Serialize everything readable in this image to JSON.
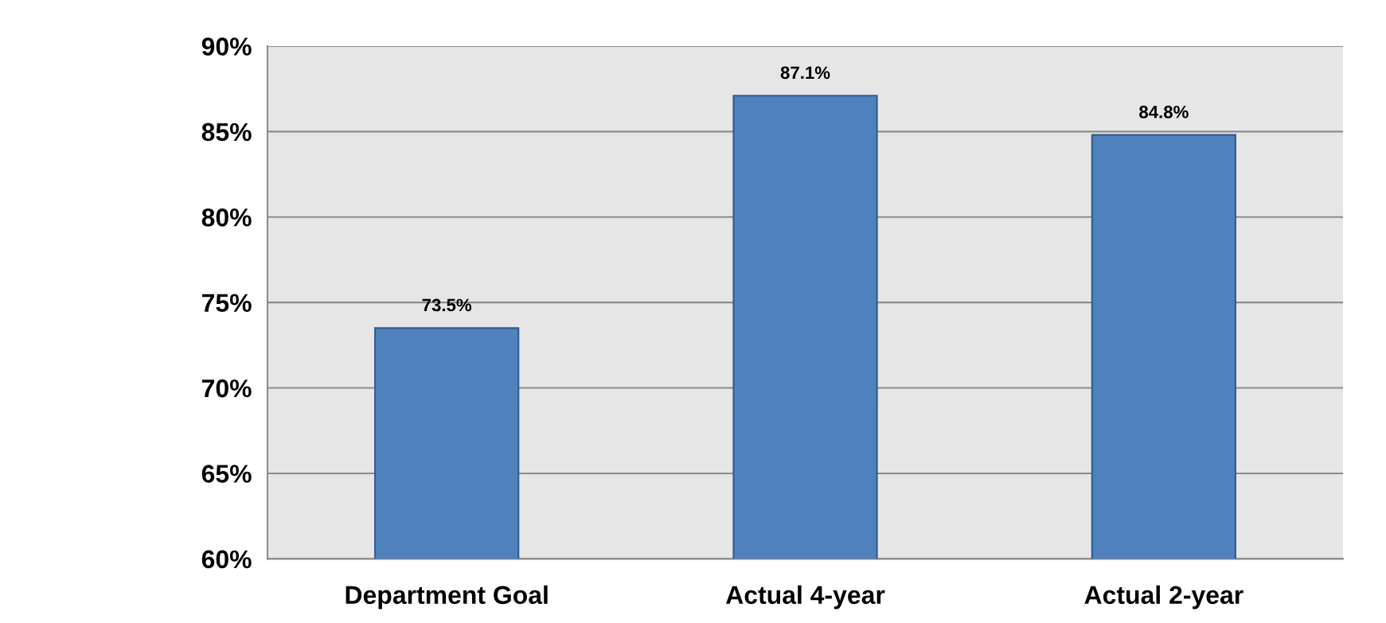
{
  "chart_data": {
    "type": "bar",
    "categories": [
      "Department Goal",
      "Actual 4-year",
      "Actual 2-year"
    ],
    "values": [
      73.5,
      87.1,
      84.8
    ],
    "value_labels": [
      "73.5%",
      "87.1%",
      "84.8%"
    ],
    "color": "#4f81bd",
    "ylim": [
      60,
      90
    ],
    "yticks": [
      {
        "value": 60,
        "label": "60%"
      },
      {
        "value": 65,
        "label": "65%"
      },
      {
        "value": 70,
        "label": "70%"
      },
      {
        "value": 75,
        "label": "75%"
      },
      {
        "value": 80,
        "label": "80%"
      },
      {
        "value": 85,
        "label": "85%"
      },
      {
        "value": 90,
        "label": "90%"
      }
    ],
    "grid": "y"
  }
}
